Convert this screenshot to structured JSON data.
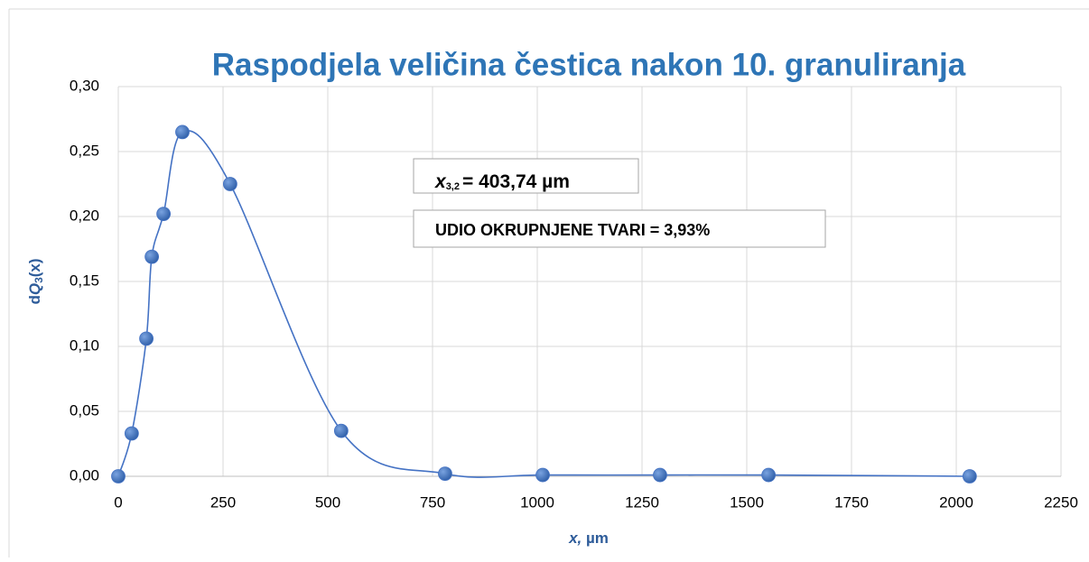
{
  "chart_data": {
    "type": "scatter",
    "title": "Raspodjela veličina čestica nakon 10. granuliranja",
    "xlabel": {
      "symbol": "x,",
      "text": " µm"
    },
    "ylabel": {
      "prefix": "d",
      "symbol": "Q",
      "subscript": "3",
      "suffix": "(x)"
    },
    "annotations": [
      {
        "symbol": "x",
        "subscript": "3,2",
        "text": "= 403,74 µm"
      },
      "UDIO OKRUPNJENE TVARI = 3,93%"
    ],
    "series": [
      {
        "color": "#4472c4",
        "x": [
          0,
          32,
          67,
          80,
          108,
          153,
          267,
          532,
          780,
          1013,
          1293,
          1552,
          2032
        ],
        "values": [
          0.0,
          0.033,
          0.106,
          0.169,
          0.202,
          0.265,
          0.225,
          0.035,
          0.002,
          0.001,
          0.001,
          0.001,
          0.0
        ]
      }
    ],
    "xlim": [
      0,
      2250
    ],
    "xticks": [
      0,
      250,
      500,
      750,
      1000,
      1250,
      1500,
      1750,
      2000,
      2250
    ],
    "ylim": [
      0,
      0.3
    ],
    "yticks": [
      {
        "value": 0,
        "label": "0,00"
      },
      {
        "value": 0.05,
        "label": "0,05"
      },
      {
        "value": 0.1,
        "label": "0,10"
      },
      {
        "value": 0.15,
        "label": "0,15"
      },
      {
        "value": 0.2,
        "label": "0,20"
      },
      {
        "value": 0.25,
        "label": "0,25"
      },
      {
        "value": 0.3,
        "label": "0,30"
      }
    ],
    "grid": true,
    "smooth": true
  }
}
